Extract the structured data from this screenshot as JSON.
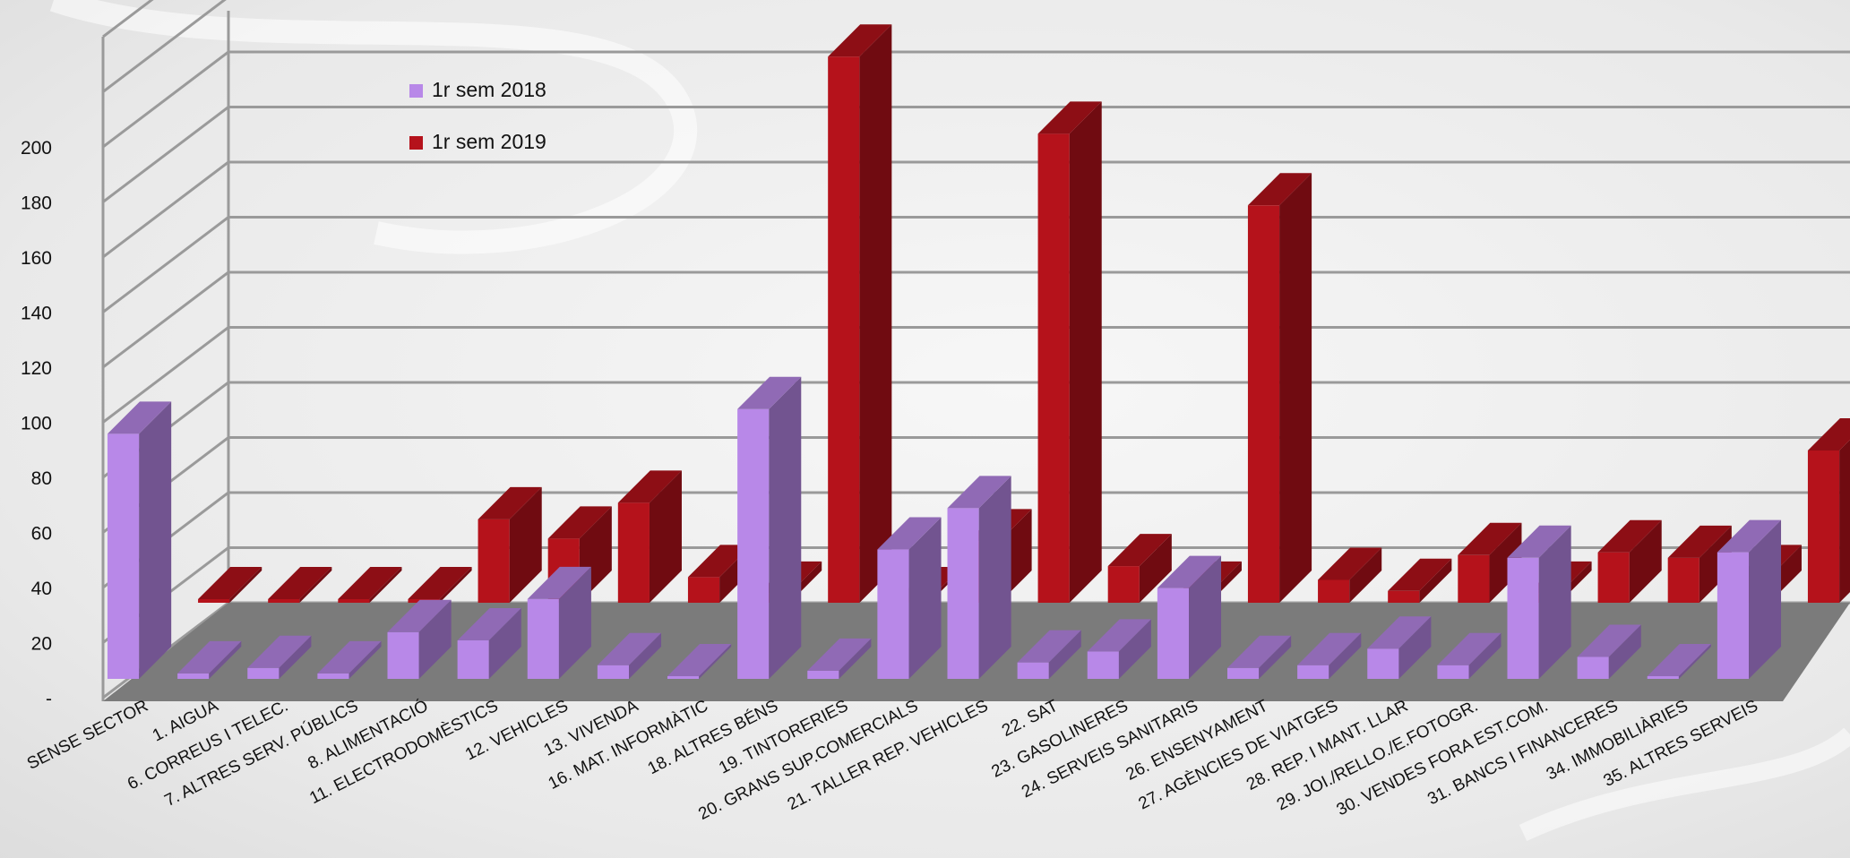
{
  "chart_data": {
    "type": "bar",
    "title": "",
    "xlabel": "",
    "ylabel": "",
    "ylim": [
      0,
      200
    ],
    "yticks": [
      "-",
      "20",
      "40",
      "60",
      "80",
      "100",
      "120",
      "140",
      "160",
      "180",
      "200"
    ],
    "grid": true,
    "legend_position": "top-left",
    "categories": [
      "SENSE SECTOR",
      "1. AIGUA",
      "6. CORREUS I TELEC.",
      "7. ALTRES SERV. PÚBLICS",
      "8. ALIMENTACIÓ",
      "11. ELECTRODOMÈSTICS",
      "12. VEHICLES",
      "13. VIVENDA",
      "16. MAT. INFORMÀTIC",
      "18. ALTRES BÉNS",
      "19. TINTORERIES",
      "20. GRANS SUP.COMERCIALS",
      "21. TALLER REP. VEHICLES",
      "22. SAT",
      "23. GASOLINERES",
      "24. SERVEIS SANITARIS",
      "26. ENSENYAMENT",
      "27. AGÈNCIES DE VIATGES",
      "28. REP. I MANT. LLAR",
      "29. JOI./RELLO./E.FOTOGR.",
      "30. VENDES FORA EST.COM.",
      "31. BANCS I FINANCERES",
      "34. IMMOBILIÀRIES",
      "35. ALTRES SERVEIS"
    ],
    "series": [
      {
        "name": "1r sem 2018",
        "color": "#b888e8",
        "values": [
          88,
          1,
          3,
          1,
          16,
          13,
          28,
          4,
          0,
          97,
          2,
          46,
          61,
          5,
          9,
          32,
          3,
          4,
          10,
          4,
          43,
          7,
          0,
          45
        ]
      },
      {
        "name": "1r sem 2019",
        "color": "#b5121b",
        "values": [
          0,
          0,
          0,
          0,
          29,
          22,
          35,
          8,
          2,
          197,
          0,
          21,
          169,
          12,
          2,
          143,
          7,
          3,
          16,
          2,
          17,
          15,
          8,
          54
        ]
      }
    ]
  }
}
